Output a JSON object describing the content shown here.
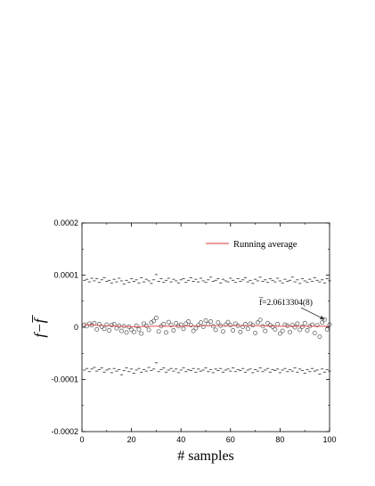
{
  "chart_data": {
    "type": "scatter",
    "xlabel": "# samples",
    "ylabel": "f−f̅",
    "xlim": [
      0,
      100
    ],
    "ylim": [
      -0.0002,
      0.0002
    ],
    "x_ticks": [
      0,
      20,
      40,
      60,
      80,
      100
    ],
    "x_tick_labels": [
      "0",
      "20",
      "40",
      "60",
      "80",
      "100"
    ],
    "y_ticks": [
      -0.0002,
      -0.0001,
      0,
      0.0001,
      0.0002
    ],
    "y_tick_labels": [
      "-0.0002",
      "-0.0001",
      "0",
      "0.0001",
      "0.0002"
    ],
    "grid": false,
    "legend": {
      "position": "top-right",
      "entries": [
        {
          "label": "Running average",
          "color": "#e06060",
          "style": "line"
        }
      ]
    },
    "annotation": {
      "text": "f̅=2.0613304(8)",
      "points_to": [
        98,
        1.5e-05
      ]
    },
    "series": [
      {
        "style": "open-circle",
        "color": "#555555",
        "x": [
          1,
          2,
          3,
          4,
          5,
          6,
          7,
          8,
          9,
          10,
          11,
          12,
          13,
          14,
          15,
          16,
          17,
          18,
          19,
          20,
          21,
          22,
          23,
          24,
          25,
          26,
          27,
          28,
          29,
          30,
          31,
          32,
          33,
          34,
          35,
          36,
          37,
          38,
          39,
          40,
          41,
          42,
          43,
          44,
          45,
          46,
          47,
          48,
          49,
          50,
          51,
          52,
          53,
          54,
          55,
          56,
          57,
          58,
          59,
          60,
          61,
          62,
          63,
          64,
          65,
          66,
          67,
          68,
          69,
          70,
          71,
          72,
          73,
          74,
          75,
          76,
          77,
          78,
          79,
          80,
          81,
          82,
          83,
          84,
          85,
          86,
          87,
          88,
          89,
          90,
          91,
          92,
          93,
          94,
          95,
          96,
          97,
          98,
          99,
          100
        ],
        "y": [
          5e-06,
          2e-06,
          7e-06,
          4e-06,
          8e-06,
          -4e-06,
          6e-06,
          1e-06,
          -3e-06,
          5e-06,
          -6e-06,
          4e-06,
          6e-06,
          -2e-06,
          3e-06,
          -7e-06,
          2e-06,
          -1e-05,
          1e-06,
          -5e-06,
          -9e-06,
          3e-06,
          -4e-06,
          -1.2e-05,
          7e-06,
          3e-06,
          -5e-06,
          9e-06,
          1.2e-05,
          1.8e-05,
          -8e-06,
          2e-06,
          6e-06,
          -1e-05,
          1e-05,
          4e-06,
          -6e-06,
          8e-06,
          2e-06,
          5e-06,
          -3e-06,
          7e-06,
          1.1e-05,
          4e-06,
          -7e-06,
          -2e-06,
          4e-06,
          9e-06,
          1e-06,
          1.3e-05,
          6e-06,
          1.1e-05,
          2e-06,
          -5e-06,
          9e-06,
          3e-06,
          -8e-06,
          5e-06,
          1e-05,
          4e-06,
          -6e-06,
          7e-06,
          3e-06,
          -9e-06,
          1e-06,
          6e-06,
          -3e-06,
          7e-06,
          4e-06,
          -1.1e-05,
          9e-06,
          1.4e-05,
          2e-06,
          -7e-06,
          8e-06,
          4e-06,
          1e-06,
          -4e-06,
          6e-06,
          -1.2e-05,
          -7e-06,
          5e-06,
          3e-06,
          -9e-06,
          4e-06,
          0.0,
          7e-06,
          -5e-06,
          1e-06,
          8e-06,
          -6e-06,
          2e-06,
          5e-06,
          -1.1e-05,
          4e-06,
          -1.8e-05,
          9e-06,
          1.5e-05,
          -4e-06,
          5e-06
        ]
      },
      {
        "name": "Running average",
        "style": "line",
        "color": "#e06060",
        "x": [
          1,
          10,
          20,
          30,
          40,
          50,
          60,
          70,
          80,
          90,
          100
        ],
        "y": [
          5e-06,
          3e-06,
          1e-06,
          2e-06,
          2e-06,
          3e-06,
          3e-06,
          3e-06,
          2e-06,
          2e-06,
          2e-06
        ]
      },
      {
        "style": "dash",
        "color": "#444444",
        "x": [
          1,
          2,
          3,
          4,
          5,
          6,
          7,
          8,
          9,
          10,
          11,
          12,
          13,
          14,
          15,
          16,
          17,
          18,
          19,
          20,
          21,
          22,
          23,
          24,
          25,
          26,
          27,
          28,
          29,
          30,
          31,
          32,
          33,
          34,
          35,
          36,
          37,
          38,
          39,
          40,
          41,
          42,
          43,
          44,
          45,
          46,
          47,
          48,
          49,
          50,
          51,
          52,
          53,
          54,
          55,
          56,
          57,
          58,
          59,
          60,
          61,
          62,
          63,
          64,
          65,
          66,
          67,
          68,
          69,
          70,
          71,
          72,
          73,
          74,
          75,
          76,
          77,
          78,
          79,
          80,
          81,
          82,
          83,
          84,
          85,
          86,
          87,
          88,
          89,
          90,
          91,
          92,
          93,
          94,
          95,
          96,
          97,
          98,
          99,
          100
        ],
        "y": [
          9e-05,
          9.2e-05,
          8.7e-05,
          9.4e-05,
          8.9e-05,
          9.3e-05,
          8.6e-05,
          9.1e-05,
          9.5e-05,
          8.8e-05,
          9e-05,
          8.5e-05,
          9.2e-05,
          8.7e-05,
          9.4e-05,
          8.9e-05,
          8.3e-05,
          9e-05,
          8.6e-05,
          9.3e-05,
          8.8e-05,
          9.1e-05,
          8.5e-05,
          9.5e-05,
          8.7e-05,
          9.2e-05,
          8.9e-05,
          8.4e-05,
          9.1e-05,
          0.000101,
          8.8e-05,
          9.3e-05,
          8.6e-05,
          9e-05,
          9.4e-05,
          8.7e-05,
          9.2e-05,
          8.9e-05,
          8.5e-05,
          9.1e-05,
          9.3e-05,
          8.6e-05,
          9e-05,
          9.5e-05,
          8.8e-05,
          9.2e-05,
          8.7e-05,
          9.4e-05,
          8.9e-05,
          8.6e-05,
          9.1e-05,
          9.6e-05,
          8.8e-05,
          9e-05,
          9.3e-05,
          8.5e-05,
          9.2e-05,
          8.9e-05,
          8.7e-05,
          9.4e-05,
          9e-05,
          8.6e-05,
          9.3e-05,
          8.8e-05,
          9.1e-05,
          9.5e-05,
          8.7e-05,
          9e-05,
          8.4e-05,
          9.2e-05,
          8.9e-05,
          9.6e-05,
          8.8e-05,
          9.1e-05,
          8.6e-05,
          9.3e-05,
          9e-05,
          8.7e-05,
          9.4e-05,
          8.9e-05,
          8.5e-05,
          9.2e-05,
          8.8e-05,
          9e-05,
          9.6e-05,
          8.7e-05,
          9.1e-05,
          8.4e-05,
          9.3e-05,
          8.9e-05,
          8.6e-05,
          9.2e-05,
          8.8e-05,
          9.5e-05,
          9e-05,
          8.7e-05,
          9.1e-05,
          8.5e-05,
          9.3e-05,
          8.9e-05
        ]
      },
      {
        "style": "dash",
        "color": "#444444",
        "x": [
          1,
          2,
          3,
          4,
          5,
          6,
          7,
          8,
          9,
          10,
          11,
          12,
          13,
          14,
          15,
          16,
          17,
          18,
          19,
          20,
          21,
          22,
          23,
          24,
          25,
          26,
          27,
          28,
          29,
          30,
          31,
          32,
          33,
          34,
          35,
          36,
          37,
          38,
          39,
          40,
          41,
          42,
          43,
          44,
          45,
          46,
          47,
          48,
          49,
          50,
          51,
          52,
          53,
          54,
          55,
          56,
          57,
          58,
          59,
          60,
          61,
          62,
          63,
          64,
          65,
          66,
          67,
          68,
          69,
          70,
          71,
          72,
          73,
          74,
          75,
          76,
          77,
          78,
          79,
          80,
          81,
          82,
          83,
          84,
          85,
          86,
          87,
          88,
          89,
          90,
          91,
          92,
          93,
          94,
          95,
          96,
          97,
          98,
          99,
          100
        ],
        "y": [
          -8.2e-05,
          -7.9e-05,
          -8.5e-05,
          -8e-05,
          -7.7e-05,
          -8.4e-05,
          -8.1e-05,
          -7.8e-05,
          -8.6e-05,
          -8.2e-05,
          -8e-05,
          -8.7e-05,
          -7.9e-05,
          -8.4e-05,
          -8.1e-05,
          -9.1e-05,
          -8.3e-05,
          -7.8e-05,
          -8.5e-05,
          -8e-05,
          -8.8e-05,
          -8.2e-05,
          -7.9e-05,
          -8.6e-05,
          -8.1e-05,
          -8.4e-05,
          -7.7e-05,
          -8.3e-05,
          -8e-05,
          -6.8e-05,
          -8.5e-05,
          -8.1e-05,
          -7.8e-05,
          -8.6e-05,
          -8.2e-05,
          -7.9e-05,
          -8.4e-05,
          -8e-05,
          -8.7e-05,
          -8.2e-05,
          -7.8e-05,
          -8.5e-05,
          -8.1e-05,
          -8.3e-05,
          -7.9e-05,
          -8.6e-05,
          -8e-05,
          -8.4e-05,
          -8.2e-05,
          -7.8e-05,
          -8.5e-05,
          -8.1e-05,
          -8.7e-05,
          -8e-05,
          -8.3e-05,
          -7.9e-05,
          -8.6e-05,
          -8.2e-05,
          -8e-05,
          -8.4e-05,
          -7.8e-05,
          -8.5e-05,
          -8.1e-05,
          -8.3e-05,
          -7.9e-05,
          -8.6e-05,
          -8.2e-05,
          -8e-05,
          -8.7e-05,
          -8.1e-05,
          -8.4e-05,
          -7.8e-05,
          -8.5e-05,
          -8.2e-05,
          -7.9e-05,
          -8.6e-05,
          -8.1e-05,
          -8.3e-05,
          -8e-05,
          -8.7e-05,
          -8.2e-05,
          -7.9e-05,
          -8.5e-05,
          -8.1e-05,
          -8.4e-05,
          -7.8e-05,
          -8.6e-05,
          -8e-05,
          -8.3e-05,
          -8.8e-05,
          -8.1e-05,
          -8.5e-05,
          -7.9e-05,
          -8.4e-05,
          -8.2e-05,
          -9e-05,
          -8e-05,
          -8.6e-05,
          -8.1e-05,
          -8.4e-05
        ]
      }
    ]
  }
}
